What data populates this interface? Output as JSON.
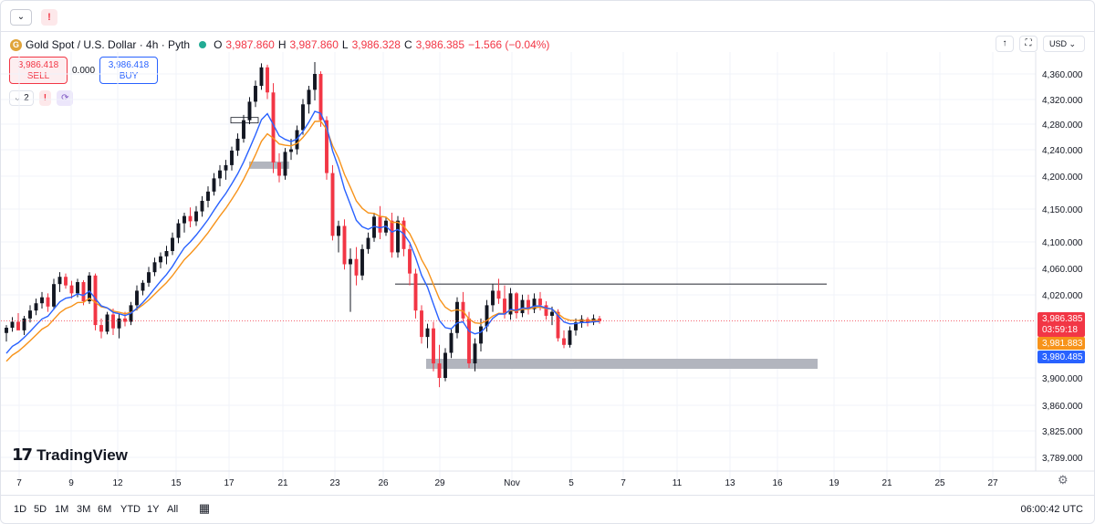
{
  "topbar": {
    "collapse_icon": "chevron-down-icon",
    "alert_label": "!"
  },
  "legend": {
    "symbol": "Gold Spot / U.S. Dollar · 4h · Pyth",
    "o_label": "O",
    "o_value": "3,987.860",
    "h_label": "H",
    "h_value": "3,987.860",
    "l_label": "L",
    "l_value": "3,986.328",
    "c_label": "C",
    "c_value": "3,986.385",
    "change": "−1.566 (−0.04%)"
  },
  "trade": {
    "sell_price": "3,986.418",
    "sell_label": "SELL",
    "spread": "0.000",
    "buy_price": "3,986.418",
    "buy_label": "BUY"
  },
  "indicators": {
    "count": "2",
    "alert": "!",
    "sync_icon": "sync-icon"
  },
  "right_tools": {
    "up_icon": "arrow-up-icon",
    "fullscreen_icon": "fullscreen-icon",
    "currency": "USD"
  },
  "colors": {
    "up": "#131722",
    "down": "#f23645",
    "ema_fast": "#2962ff",
    "ema_slow": "#f7931a",
    "zone": "#b2b5be"
  },
  "price_axis": {
    "ticks": [
      "4,360.000",
      "4,320.000",
      "4,280.000",
      "4,240.000",
      "4,200.000",
      "4,150.000",
      "4,100.000",
      "4,060.000",
      "4,020.000",
      "3,900.000",
      "3,860.000",
      "3,825.000",
      "3,789.000"
    ],
    "last_price": "3,986.385",
    "countdown": "03:59:18",
    "ema_slow_value": "3,981.883",
    "ema_fast_value": "3,980.485"
  },
  "time_axis": {
    "ticks": [
      "7",
      "9",
      "12",
      "15",
      "17",
      "21",
      "23",
      "26",
      "29",
      "Nov",
      "5",
      "7",
      "11",
      "13",
      "16",
      "19",
      "21",
      "25",
      "27"
    ]
  },
  "brand": "TradingView",
  "ranges": [
    "1D",
    "5D",
    "1M",
    "3M",
    "6M",
    "YTD",
    "1Y",
    "All"
  ],
  "clock": "06:00:42 UTC",
  "chart_data": {
    "type": "candlestick",
    "title": "Gold Spot / U.S. Dollar · 4h · Pyth",
    "ohlc": [
      [
        3968,
        3980,
        3955,
        3976
      ],
      [
        3976,
        3992,
        3970,
        3985
      ],
      [
        3985,
        3998,
        3978,
        3972
      ],
      [
        3972,
        3994,
        3965,
        3990
      ],
      [
        3990,
        4010,
        3984,
        4002
      ],
      [
        4002,
        4020,
        3995,
        4013
      ],
      [
        4013,
        4030,
        4005,
        4022
      ],
      [
        4022,
        4028,
        4000,
        4008
      ],
      [
        4008,
        4050,
        4003,
        4042
      ],
      [
        4042,
        4060,
        4030,
        4053
      ],
      [
        4053,
        4058,
        4035,
        4040
      ],
      [
        4040,
        4047,
        4020,
        4028
      ],
      [
        4028,
        4050,
        4022,
        4045
      ],
      [
        4045,
        4048,
        4010,
        4016
      ],
      [
        4016,
        4060,
        4012,
        4055
      ],
      [
        4055,
        4058,
        3972,
        3980
      ],
      [
        3980,
        3990,
        3960,
        3970
      ],
      [
        3970,
        4000,
        3966,
        3996
      ],
      [
        3996,
        4005,
        3965,
        3975
      ],
      [
        3975,
        3998,
        3960,
        3990
      ],
      [
        3990,
        4000,
        3978,
        3985
      ],
      [
        3985,
        4015,
        3980,
        4010
      ],
      [
        4010,
        4040,
        4002,
        4032
      ],
      [
        4032,
        4048,
        4025,
        4044
      ],
      [
        4044,
        4068,
        4038,
        4060
      ],
      [
        4060,
        4082,
        4054,
        4075
      ],
      [
        4075,
        4090,
        4066,
        4084
      ],
      [
        4084,
        4100,
        4072,
        4092
      ],
      [
        4092,
        4120,
        4086,
        4112
      ],
      [
        4112,
        4140,
        4104,
        4134
      ],
      [
        4134,
        4150,
        4120,
        4145
      ],
      [
        4145,
        4158,
        4128,
        4137
      ],
      [
        4137,
        4160,
        4130,
        4152
      ],
      [
        4152,
        4175,
        4144,
        4168
      ],
      [
        4168,
        4190,
        4158,
        4182
      ],
      [
        4182,
        4210,
        4176,
        4202
      ],
      [
        4202,
        4222,
        4190,
        4214
      ],
      [
        4214,
        4230,
        4200,
        4222
      ],
      [
        4222,
        4250,
        4214,
        4244
      ],
      [
        4244,
        4270,
        4236,
        4262
      ],
      [
        4262,
        4298,
        4256,
        4290
      ],
      [
        4290,
        4325,
        4284,
        4318
      ],
      [
        4318,
        4350,
        4310,
        4342
      ],
      [
        4342,
        4376,
        4336,
        4370
      ],
      [
        4370,
        4374,
        4322,
        4332
      ],
      [
        4332,
        4346,
        4210,
        4226
      ],
      [
        4226,
        4240,
        4196,
        4206
      ],
      [
        4206,
        4248,
        4200,
        4242
      ],
      [
        4242,
        4262,
        4230,
        4246
      ],
      [
        4246,
        4282,
        4238,
        4275
      ],
      [
        4275,
        4322,
        4268,
        4314
      ],
      [
        4314,
        4342,
        4300,
        4336
      ],
      [
        4336,
        4378,
        4320,
        4360
      ],
      [
        4360,
        4364,
        4280,
        4290
      ],
      [
        4290,
        4296,
        4200,
        4210
      ],
      [
        4210,
        4222,
        4108,
        4115
      ],
      [
        4115,
        4138,
        4090,
        4130
      ],
      [
        4130,
        4140,
        4064,
        4072
      ],
      [
        4072,
        4096,
        4000,
        4080
      ],
      [
        4080,
        4098,
        4040,
        4055
      ],
      [
        4055,
        4102,
        4048,
        4095
      ],
      [
        4095,
        4120,
        4088,
        4112
      ],
      [
        4112,
        4150,
        4106,
        4144
      ],
      [
        4144,
        4160,
        4110,
        4120
      ],
      [
        4120,
        4144,
        4115,
        4138
      ],
      [
        4138,
        4150,
        4082,
        4090
      ],
      [
        4090,
        4145,
        4082,
        4138
      ],
      [
        4138,
        4143,
        4084,
        4095
      ],
      [
        4095,
        4102,
        4040,
        4058
      ],
      [
        4058,
        4065,
        3990,
        4002
      ],
      [
        4002,
        4010,
        3952,
        3962
      ],
      [
        3962,
        3982,
        3945,
        3975
      ],
      [
        3975,
        3985,
        3910,
        3922
      ],
      [
        3922,
        3950,
        3886,
        3900
      ],
      [
        3900,
        3945,
        3895,
        3938
      ],
      [
        3938,
        3975,
        3930,
        3968
      ],
      [
        3968,
        4022,
        3960,
        4015
      ],
      [
        4015,
        4030,
        3985,
        3990
      ],
      [
        3990,
        4000,
        3915,
        3922
      ],
      [
        3922,
        3960,
        3910,
        3952
      ],
      [
        3952,
        3990,
        3940,
        3978
      ],
      [
        3978,
        4018,
        3970,
        4010
      ],
      [
        4010,
        4042,
        4000,
        4032
      ],
      [
        4032,
        4050,
        4012,
        4020
      ],
      [
        4020,
        4040,
        3990,
        3996
      ],
      [
        3996,
        4036,
        3988,
        4028
      ],
      [
        4028,
        4030,
        3990,
        3998
      ],
      [
        3998,
        4026,
        3992,
        4018
      ],
      [
        4018,
        4026,
        3996,
        4004
      ],
      [
        4004,
        4028,
        3998,
        4020
      ],
      [
        4020,
        4030,
        4002,
        4010
      ],
      [
        4010,
        4016,
        3988,
        3994
      ],
      [
        3994,
        4008,
        3980,
        4000
      ],
      [
        4000,
        4004,
        3955,
        3960
      ],
      [
        3960,
        3972,
        3945,
        3950
      ],
      [
        3950,
        3978,
        3946,
        3972
      ],
      [
        3972,
        3990,
        3964,
        3984
      ],
      [
        3984,
        3995,
        3976,
        3989
      ],
      [
        3989,
        3992,
        3978,
        3984
      ],
      [
        3984,
        3996,
        3980,
        3990
      ],
      [
        3990,
        3994,
        3982,
        3986
      ]
    ],
    "ema_fast_label": "3,980.485",
    "ema_slow_label": "3,981.883",
    "last_close": 3986.385,
    "resistance": 4042,
    "support_zone": [
      3920,
      3935
    ],
    "y_range": [
      3780,
      4390
    ]
  }
}
